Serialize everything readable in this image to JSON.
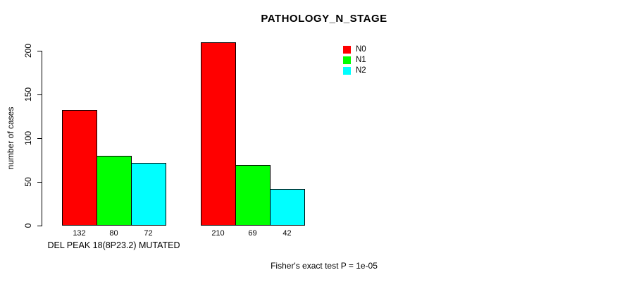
{
  "chart_data": {
    "type": "bar",
    "title": "PATHOLOGY_N_STAGE",
    "ylabel": "number of cases",
    "xlabel": "",
    "group_labels": [
      "DEL PEAK 18(8P23.2) MUTATED",
      ""
    ],
    "series": [
      {
        "name": "N0",
        "color": "#ff0000",
        "values": [
          132,
          210
        ]
      },
      {
        "name": "N1",
        "color": "#00ff00",
        "values": [
          80,
          69
        ]
      },
      {
        "name": "N2",
        "color": "#00ffff",
        "values": [
          72,
          42
        ]
      }
    ],
    "yticks": [
      0,
      50,
      100,
      150,
      200
    ],
    "ylim": [
      0,
      200
    ],
    "grid": false,
    "bar_value_labels_shown": true,
    "legend_position": "top-right",
    "annotation": "Fisher's exact test P = 1e-05",
    "colors": {
      "axis": "#000000",
      "text": "#000000",
      "background": "#ffffff"
    }
  }
}
